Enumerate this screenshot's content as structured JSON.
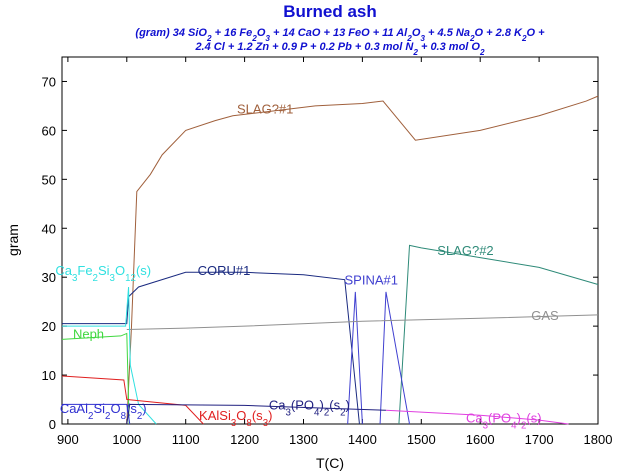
{
  "chart_data": {
    "type": "line",
    "title": "Burned ash",
    "subtitle": [
      "(gram) 34 SiO2 + 16 Fe2O3 + 14 CaO + 13 FeO + 11 Al2O3 + 4.5 Na2O + 2.8 K2O +",
      "2.4 Cl + 1.2 Zn + 0.9 P + 0.2 Pb + 0.3 mol N2 + 0.3 mol O2"
    ],
    "x_label": "T(C)",
    "y_label": "gram",
    "xlim": [
      890,
      1800
    ],
    "ylim": [
      0,
      75
    ],
    "xticks": [
      900,
      1000,
      1100,
      1200,
      1300,
      1400,
      1500,
      1600,
      1700,
      1800
    ],
    "yticks": [
      0,
      10,
      20,
      30,
      40,
      50,
      60,
      70
    ],
    "series": [
      {
        "name": "SLAG?#1",
        "color": "#a0603c",
        "x": [
          1000,
          1008,
          1017,
          1040,
          1060,
          1100,
          1150,
          1180,
          1250,
          1320,
          1400,
          1435,
          1490,
          1600,
          1700,
          1780,
          1800
        ],
        "values": [
          0,
          20,
          47.5,
          51,
          55,
          60,
          62,
          63,
          64,
          65,
          65.5,
          66,
          58,
          60,
          63,
          66,
          67
        ]
      },
      {
        "name": "SLAG?#2",
        "color": "#2e8a78",
        "x": [
          1462,
          1480,
          1500,
          1600,
          1700,
          1800
        ],
        "values": [
          0,
          36.5,
          36,
          34,
          32,
          28.5
        ]
      },
      {
        "name": "CORU#1",
        "color": "#1a2a80",
        "x": [
          890,
          1000,
          1003,
          1020,
          1100,
          1200,
          1300,
          1370,
          1395
        ],
        "values": [
          20.5,
          20.5,
          26,
          28,
          31,
          31,
          30.5,
          29.5,
          0
        ]
      },
      {
        "name": "SPINA#1",
        "color": "#4040d0",
        "x": [
          1375,
          1388,
          1400,
          null,
          1430,
          1440,
          1480
        ],
        "values": [
          0,
          27,
          0,
          null,
          0,
          27,
          0
        ]
      },
      {
        "name": "GAS",
        "color": "#909090",
        "x": [
          1000,
          1100,
          1200,
          1400,
          1600,
          1800
        ],
        "values": [
          19.3,
          19.6,
          20,
          21,
          21.6,
          22.3
        ]
      },
      {
        "name": "Ca3Fe2Si3O12(s)",
        "color": "#30e0e0",
        "x": [
          890,
          998,
          1003,
          1006,
          1020,
          1050
        ],
        "values": [
          20,
          20,
          28,
          12,
          4,
          0
        ]
      },
      {
        "name": "Neph",
        "color": "#40d840",
        "x": [
          890,
          990,
          1000,
          1004
        ],
        "values": [
          17.3,
          18,
          18.5,
          0
        ]
      },
      {
        "name": "KAlSi3O8(s3)",
        "color": "#e02020",
        "x": [
          890,
          995,
          1000,
          1100,
          1130
        ],
        "values": [
          9.8,
          9,
          5,
          3.8,
          0
        ]
      },
      {
        "name": "CaAl2Si2O8(s2)",
        "color": "#3030d0",
        "x": [
          890,
          1000,
          1005
        ],
        "values": [
          4,
          4,
          0
        ]
      },
      {
        "name": "Ca3(PO4)2(s2)",
        "color": "#202080",
        "x": [
          1000,
          1005,
          1200,
          1440
        ],
        "values": [
          0,
          4,
          3.8,
          2.8
        ]
      },
      {
        "name": "Ca3(PO4)2(s)",
        "color": "#e040e0",
        "x": [
          1440,
          1600,
          1700,
          1750
        ],
        "values": [
          2.8,
          1.8,
          0.8,
          0
        ]
      }
    ]
  }
}
